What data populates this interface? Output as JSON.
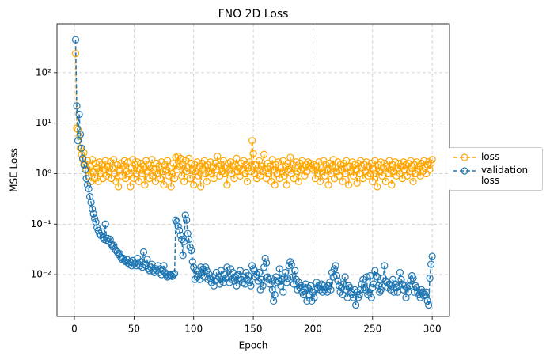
{
  "chart_data": {
    "type": "line",
    "title": "FNO 2D Loss",
    "x_label": "Epoch",
    "y_label": "MSE Loss",
    "log_y": true,
    "grid": true,
    "legend": "right",
    "xlim": [
      -14.6,
      314.5
    ],
    "xticks": [
      0,
      50,
      100,
      150,
      200,
      250,
      300
    ],
    "ylim": [
      0.00148,
      933
    ],
    "yticks": [
      {
        "value": 0.01,
        "label": "10⁻²"
      },
      {
        "value": 0.1,
        "label": "10⁻¹"
      },
      {
        "value": 1,
        "label": "10⁰"
      },
      {
        "value": 10,
        "label": "10¹"
      },
      {
        "value": 100,
        "label": "10²"
      }
    ],
    "x": [
      1,
      2,
      3,
      4,
      5,
      6,
      7,
      8,
      9,
      10,
      11,
      12,
      13,
      14,
      15,
      16,
      17,
      18,
      19,
      20,
      21,
      22,
      23,
      24,
      25,
      26,
      27,
      28,
      29,
      30,
      31,
      32,
      33,
      34,
      35,
      36,
      37,
      38,
      39,
      40,
      41,
      42,
      43,
      44,
      45,
      46,
      47,
      48,
      49,
      50,
      51,
      52,
      53,
      54,
      55,
      56,
      57,
      58,
      59,
      60,
      61,
      62,
      63,
      64,
      65,
      66,
      67,
      68,
      69,
      70,
      71,
      72,
      73,
      74,
      75,
      76,
      77,
      78,
      79,
      80,
      81,
      82,
      83,
      84,
      85,
      86,
      87,
      88,
      89,
      90,
      91,
      92,
      93,
      94,
      95,
      96,
      97,
      98,
      99,
      100,
      101,
      102,
      103,
      104,
      105,
      106,
      107,
      108,
      109,
      110,
      111,
      112,
      113,
      114,
      115,
      116,
      117,
      118,
      119,
      120,
      121,
      122,
      123,
      124,
      125,
      126,
      127,
      128,
      129,
      130,
      131,
      132,
      133,
      134,
      135,
      136,
      137,
      138,
      139,
      140,
      141,
      142,
      143,
      144,
      145,
      146,
      147,
      148,
      149,
      150,
      151,
      152,
      153,
      154,
      155,
      156,
      157,
      158,
      159,
      160,
      161,
      162,
      163,
      164,
      165,
      166,
      167,
      168,
      169,
      170,
      171,
      172,
      173,
      174,
      175,
      176,
      177,
      178,
      179,
      180,
      181,
      182,
      183,
      184,
      185,
      186,
      187,
      188,
      189,
      190,
      191,
      192,
      193,
      194,
      195,
      196,
      197,
      198,
      199,
      200,
      201,
      202,
      203,
      204,
      205,
      206,
      207,
      208,
      209,
      210,
      211,
      212,
      213,
      214,
      215,
      216,
      217,
      218,
      219,
      220,
      221,
      222,
      223,
      224,
      225,
      226,
      227,
      228,
      229,
      230,
      231,
      232,
      233,
      234,
      235,
      236,
      237,
      238,
      239,
      240,
      241,
      242,
      243,
      244,
      245,
      246,
      247,
      248,
      249,
      250,
      251,
      252,
      253,
      254,
      255,
      256,
      257,
      258,
      259,
      260,
      261,
      262,
      263,
      264,
      265,
      266,
      267,
      268,
      269,
      270,
      271,
      272,
      273,
      274,
      275,
      276,
      277,
      278,
      279,
      280,
      281,
      282,
      283,
      284,
      285,
      286,
      287,
      288,
      289,
      290,
      291,
      292,
      293,
      294,
      295,
      296,
      297,
      298,
      299,
      300
    ],
    "series": [
      {
        "name": "loss",
        "color": "#ffa500",
        "values": [
          240,
          8,
          7.5,
          5.5,
          3.2,
          2.4,
          1.9,
          2.6,
          1.5,
          1.2,
          1.8,
          0.9,
          1.4,
          0.7,
          1.9,
          1.1,
          0.8,
          1.6,
          1.3,
          0.7,
          1.7,
          1.0,
          1.5,
          0.8,
          1.2,
          1.8,
          0.9,
          1.4,
          1.1,
          1.7,
          0.8,
          1.3,
          1.9,
          1.0,
          0.7,
          1.5,
          0.55,
          1.2,
          1.6,
          0.9,
          1.4,
          1.8,
          0.8,
          1.1,
          1.7,
          1.0,
          0.55,
          1.3,
          1.9,
          0.8,
          1.5,
          1.0,
          1.7,
          0.7,
          1.2,
          1.6,
          1.0,
          1.4,
          0.6,
          1.8,
          1.1,
          1.5,
          0.8,
          1.3,
          1.9,
          0.9,
          1.2,
          0.7,
          1.6,
          1.0,
          1.4,
          0.8,
          1.7,
          1.1,
          0.6,
          1.5,
          1.2,
          1.8,
          0.9,
          1.3,
          0.55,
          1.0,
          1.6,
          0.8,
          2.1,
          1.2,
          2.2,
          1.4,
          2.0,
          0.9,
          1.5,
          0.7,
          1.8,
          1.1,
          1.3,
          2.0,
          0.8,
          1.6,
          1.2,
          0.6,
          1.5,
          1.1,
          1.7,
          0.9,
          1.4,
          0.55,
          1.6,
          1.2,
          1.8,
          1.0,
          0.7,
          1.5,
          1.1,
          1.7,
          1.0,
          1.3,
          0.8,
          1.6,
          1.2,
          2.2,
          1.4,
          0.9,
          1.5,
          1.1,
          1.8,
          1.0,
          1.3,
          0.6,
          1.6,
          1.2,
          1.7,
          1.0,
          1.4,
          0.8,
          1.5,
          2.0,
          1.1,
          1.3,
          0.9,
          1.6,
          1.2,
          1.8,
          1.0,
          1.5,
          0.7,
          1.3,
          1.7,
          1.1,
          4.5,
          2.5,
          1.0,
          1.5,
          0.8,
          1.3,
          1.8,
          0.9,
          1.4,
          1.1,
          2.4,
          1.2,
          0.8,
          1.6,
          1.0,
          1.4,
          0.7,
          1.9,
          1.2,
          0.6,
          1.5,
          1.0,
          1.7,
          0.8,
          1.3,
          1.1,
          1.8,
          0.9,
          1.4,
          0.6,
          1.6,
          1.2,
          2.1,
          1.0,
          1.5,
          0.8,
          1.3,
          1.7,
          1.1,
          0.7,
          1.6,
          1.2,
          1.8,
          1.3,
          0.9,
          1.5,
          1.1,
          1.7,
          1.4,
          1.6,
          1.3,
          1.2,
          1.5,
          0.8,
          1.4,
          1.0,
          1.7,
          0.7,
          1.3,
          1.1,
          1.8,
          0.9,
          1.5,
          1.2,
          0.6,
          1.6,
          1.0,
          1.4,
          1.9,
          0.8,
          1.3,
          1.1,
          1.7,
          0.9,
          1.5,
          1.2,
          0.7,
          1.6,
          1.0,
          1.8,
          1.3,
          0.6,
          1.4,
          1.1,
          1.7,
          0.9,
          1.5,
          1.2,
          0.65,
          1.6,
          1.0,
          1.8,
          1.3,
          0.8,
          1.5,
          1.1,
          1.7,
          0.9,
          1.4,
          1.0,
          1.6,
          0.7,
          1.2,
          1.8,
          1.0,
          0.55,
          1.5,
          1.1,
          1.7,
          0.9,
          1.3,
          1.6,
          0.7,
          1.4,
          1.0,
          1.8,
          1.2,
          0.6,
          1.5,
          1.1,
          1.7,
          0.9,
          1.3,
          1.6,
          1.0,
          1.4,
          0.8,
          1.7,
          1.2,
          1.5,
          0.9,
          1.6,
          1.1,
          1.8,
          1.3,
          0.7,
          1.5,
          1.0,
          1.7,
          1.2,
          1.4,
          0.9,
          1.6,
          1.1,
          1.8,
          1.3,
          1.0,
          1.5,
          1.7,
          1.2,
          1.6,
          1.9
        ]
      },
      {
        "name": "validation loss",
        "color": "#1f77b4",
        "values": [
          450,
          22,
          4.5,
          15,
          6,
          3.2,
          2.0,
          1.5,
          1.2,
          0.8,
          0.6,
          0.5,
          0.35,
          0.27,
          0.2,
          0.16,
          0.13,
          0.11,
          0.085,
          0.075,
          0.065,
          0.06,
          0.07,
          0.055,
          0.05,
          0.1,
          0.048,
          0.052,
          0.045,
          0.05,
          0.04,
          0.036,
          0.038,
          0.032,
          0.03,
          0.028,
          0.025,
          0.026,
          0.022,
          0.02,
          0.021,
          0.019,
          0.018,
          0.02,
          0.017,
          0.016,
          0.018,
          0.015,
          0.019,
          0.016,
          0.017,
          0.015,
          0.021,
          0.016,
          0.015,
          0.018,
          0.014,
          0.028,
          0.016,
          0.015,
          0.02,
          0.013,
          0.012,
          0.014,
          0.016,
          0.012,
          0.011,
          0.013,
          0.012,
          0.015,
          0.011,
          0.013,
          0.01,
          0.012,
          0.015,
          0.011,
          0.01,
          0.009,
          0.0095,
          0.01,
          0.0098,
          0.0092,
          0.01,
          0.0105,
          0.12,
          0.11,
          0.09,
          0.075,
          0.06,
          0.05,
          0.024,
          0.045,
          0.15,
          0.12,
          0.065,
          0.05,
          0.035,
          0.03,
          0.018,
          0.014,
          0.008,
          0.012,
          0.009,
          0.01,
          0.008,
          0.014,
          0.011,
          0.013,
          0.009,
          0.014,
          0.012,
          0.008,
          0.01,
          0.0085,
          0.007,
          0.009,
          0.006,
          0.0075,
          0.011,
          0.008,
          0.009,
          0.0065,
          0.012,
          0.008,
          0.007,
          0.01,
          0.0085,
          0.014,
          0.009,
          0.007,
          0.013,
          0.008,
          0.011,
          0.0075,
          0.009,
          0.006,
          0.01,
          0.0085,
          0.012,
          0.008,
          0.007,
          0.009,
          0.0065,
          0.011,
          0.008,
          0.0095,
          0.007,
          0.006,
          0.015,
          0.013,
          0.012,
          0.009,
          0.01,
          0.0075,
          0.011,
          0.005,
          0.008,
          0.006,
          0.014,
          0.021,
          0.017,
          0.009,
          0.008,
          0.0065,
          0.0085,
          0.005,
          0.003,
          0.004,
          0.009,
          0.007,
          0.0075,
          0.013,
          0.006,
          0.008,
          0.0045,
          0.009,
          0.011,
          0.007,
          0.0085,
          0.015,
          0.018,
          0.016,
          0.009,
          0.0065,
          0.012,
          0.008,
          0.005,
          0.007,
          0.0055,
          0.006,
          0.0045,
          0.004,
          0.005,
          0.0065,
          0.003,
          0.0055,
          0.004,
          0.006,
          0.003,
          0.0045,
          0.0035,
          0.005,
          0.007,
          0.0055,
          0.006,
          0.005,
          0.0065,
          0.0045,
          0.006,
          0.005,
          0.0055,
          0.0045,
          0.006,
          0.007,
          0.005,
          0.011,
          0.009,
          0.013,
          0.015,
          0.0095,
          0.0075,
          0.006,
          0.0045,
          0.0055,
          0.004,
          0.0065,
          0.009,
          0.005,
          0.0035,
          0.006,
          0.0055,
          0.0045,
          0.004,
          0.0035,
          0.005,
          0.0025,
          0.0045,
          0.0035,
          0.004,
          0.005,
          0.0065,
          0.008,
          0.0055,
          0.005,
          0.009,
          0.004,
          0.0045,
          0.0095,
          0.0035,
          0.0055,
          0.0065,
          0.012,
          0.0095,
          0.009,
          0.006,
          0.0045,
          0.005,
          0.006,
          0.0085,
          0.015,
          0.0075,
          0.007,
          0.0055,
          0.0065,
          0.005,
          0.006,
          0.008,
          0.0045,
          0.0065,
          0.0055,
          0.0045,
          0.006,
          0.011,
          0.008,
          0.0065,
          0.005,
          0.006,
          0.0035,
          0.0055,
          0.0045,
          0.006,
          0.0075,
          0.0095,
          0.0085,
          0.0045,
          0.006,
          0.0055,
          0.0045,
          0.004,
          0.0035,
          0.005,
          0.0045,
          0.0038,
          0.004,
          0.0045,
          0.003,
          0.0025,
          0.0085,
          0.016,
          0.023
        ]
      }
    ]
  }
}
